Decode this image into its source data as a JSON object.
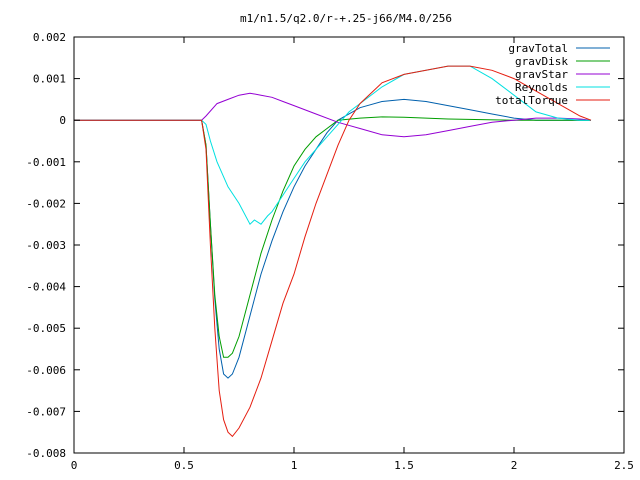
{
  "chart_data": {
    "type": "line",
    "title": "m1/n1.5/q2.0/r-+.25-j66/M4.0/256",
    "xlim": [
      0,
      2.5
    ],
    "ylim": [
      -0.008,
      0.002
    ],
    "x_ticks": [
      {
        "v": 0,
        "label": "0"
      },
      {
        "v": 0.5,
        "label": "0.5"
      },
      {
        "v": 1,
        "label": "1"
      },
      {
        "v": 1.5,
        "label": "1.5"
      },
      {
        "v": 2,
        "label": "2"
      },
      {
        "v": 2.5,
        "label": "2.5"
      }
    ],
    "y_ticks": [
      {
        "v": 0.002,
        "label": "0.002"
      },
      {
        "v": 0.001,
        "label": "0.001"
      },
      {
        "v": 0,
        "label": "0"
      },
      {
        "v": -0.001,
        "label": "-0.001"
      },
      {
        "v": -0.002,
        "label": "-0.002"
      },
      {
        "v": -0.003,
        "label": "-0.003"
      },
      {
        "v": -0.004,
        "label": "-0.004"
      },
      {
        "v": -0.005,
        "label": "-0.005"
      },
      {
        "v": -0.006,
        "label": "-0.006"
      },
      {
        "v": -0.007,
        "label": "-0.007"
      },
      {
        "v": -0.008,
        "label": "-0.008"
      }
    ],
    "grid": false,
    "legend_position": "top-right",
    "series": [
      {
        "name": "gravTotal",
        "color": "#0060ad",
        "points": [
          [
            0,
            0
          ],
          [
            0.58,
            0
          ],
          [
            0.6,
            -0.0006
          ],
          [
            0.62,
            -0.0025
          ],
          [
            0.64,
            -0.0043
          ],
          [
            0.66,
            -0.0055
          ],
          [
            0.68,
            -0.0061
          ],
          [
            0.7,
            -0.0062
          ],
          [
            0.72,
            -0.0061
          ],
          [
            0.75,
            -0.0057
          ],
          [
            0.8,
            -0.0047
          ],
          [
            0.85,
            -0.0037
          ],
          [
            0.9,
            -0.0029
          ],
          [
            0.95,
            -0.0022
          ],
          [
            1.0,
            -0.0016
          ],
          [
            1.05,
            -0.0011
          ],
          [
            1.1,
            -0.0007
          ],
          [
            1.15,
            -0.0003
          ],
          [
            1.2,
            0.0
          ],
          [
            1.3,
            0.0003
          ],
          [
            1.4,
            0.00045
          ],
          [
            1.5,
            0.0005
          ],
          [
            1.6,
            0.00045
          ],
          [
            1.7,
            0.00035
          ],
          [
            1.8,
            0.00025
          ],
          [
            1.9,
            0.00015
          ],
          [
            2.0,
            5e-05
          ],
          [
            2.1,
            0.0
          ],
          [
            2.2,
            0.0
          ],
          [
            2.3,
            0.0
          ],
          [
            2.35,
            0.0
          ]
        ]
      },
      {
        "name": "gravDisk",
        "color": "#009e00",
        "points": [
          [
            0,
            0
          ],
          [
            0.58,
            0
          ],
          [
            0.6,
            -0.0006
          ],
          [
            0.62,
            -0.0025
          ],
          [
            0.64,
            -0.0042
          ],
          [
            0.66,
            -0.0052
          ],
          [
            0.68,
            -0.0057
          ],
          [
            0.7,
            -0.0057
          ],
          [
            0.72,
            -0.0056
          ],
          [
            0.75,
            -0.0052
          ],
          [
            0.8,
            -0.0042
          ],
          [
            0.85,
            -0.0032
          ],
          [
            0.9,
            -0.0024
          ],
          [
            0.95,
            -0.0017
          ],
          [
            1.0,
            -0.0011
          ],
          [
            1.05,
            -0.0007
          ],
          [
            1.1,
            -0.0004
          ],
          [
            1.15,
            -0.0002
          ],
          [
            1.2,
            0.0
          ],
          [
            1.3,
            5e-05
          ],
          [
            1.4,
            8e-05
          ],
          [
            1.5,
            7e-05
          ],
          [
            1.7,
            3e-05
          ],
          [
            2.0,
            0.0
          ],
          [
            2.35,
            0.0
          ]
        ]
      },
      {
        "name": "gravStar",
        "color": "#9400d3",
        "points": [
          [
            0,
            0
          ],
          [
            0.58,
            0
          ],
          [
            0.6,
            0.0001
          ],
          [
            0.65,
            0.0004
          ],
          [
            0.7,
            0.0005
          ],
          [
            0.75,
            0.0006
          ],
          [
            0.8,
            0.00065
          ],
          [
            0.85,
            0.0006
          ],
          [
            0.9,
            0.00055
          ],
          [
            0.95,
            0.00045
          ],
          [
            1.0,
            0.00035
          ],
          [
            1.1,
            0.00015
          ],
          [
            1.2,
            -5e-05
          ],
          [
            1.3,
            -0.0002
          ],
          [
            1.4,
            -0.00035
          ],
          [
            1.5,
            -0.0004
          ],
          [
            1.6,
            -0.00035
          ],
          [
            1.7,
            -0.00025
          ],
          [
            1.8,
            -0.00015
          ],
          [
            1.9,
            -5e-05
          ],
          [
            2.0,
            0.0
          ],
          [
            2.1,
            5e-05
          ],
          [
            2.2,
            5e-05
          ],
          [
            2.3,
            3e-05
          ],
          [
            2.35,
            0.0
          ]
        ]
      },
      {
        "name": "Reynolds",
        "color": "#00e0e0",
        "points": [
          [
            0,
            0
          ],
          [
            0.58,
            0
          ],
          [
            0.6,
            -0.0001
          ],
          [
            0.62,
            -0.0005
          ],
          [
            0.65,
            -0.001
          ],
          [
            0.7,
            -0.0016
          ],
          [
            0.75,
            -0.002
          ],
          [
            0.8,
            -0.0025
          ],
          [
            0.82,
            -0.0024
          ],
          [
            0.85,
            -0.0025
          ],
          [
            0.88,
            -0.0023
          ],
          [
            0.9,
            -0.0022
          ],
          [
            0.95,
            -0.0018
          ],
          [
            1.0,
            -0.0014
          ],
          [
            1.05,
            -0.001
          ],
          [
            1.1,
            -0.0007
          ],
          [
            1.15,
            -0.0004
          ],
          [
            1.2,
            -0.0001
          ],
          [
            1.25,
            0.0002
          ],
          [
            1.3,
            0.0004
          ],
          [
            1.4,
            0.0008
          ],
          [
            1.5,
            0.0011
          ],
          [
            1.6,
            0.0012
          ],
          [
            1.7,
            0.0013
          ],
          [
            1.8,
            0.0013
          ],
          [
            1.9,
            0.001
          ],
          [
            2.0,
            0.0006
          ],
          [
            2.1,
            0.0002
          ],
          [
            2.2,
            5e-05
          ],
          [
            2.3,
            0.0
          ],
          [
            2.35,
            0.0
          ]
        ]
      },
      {
        "name": "totalTorque",
        "color": "#e51e10",
        "points": [
          [
            0,
            0
          ],
          [
            0.58,
            0
          ],
          [
            0.6,
            -0.0007
          ],
          [
            0.62,
            -0.003
          ],
          [
            0.64,
            -0.005
          ],
          [
            0.66,
            -0.0065
          ],
          [
            0.68,
            -0.0072
          ],
          [
            0.7,
            -0.0075
          ],
          [
            0.72,
            -0.0076
          ],
          [
            0.75,
            -0.0074
          ],
          [
            0.8,
            -0.0069
          ],
          [
            0.85,
            -0.0062
          ],
          [
            0.9,
            -0.0053
          ],
          [
            0.95,
            -0.0044
          ],
          [
            1.0,
            -0.0037
          ],
          [
            1.05,
            -0.0028
          ],
          [
            1.1,
            -0.002
          ],
          [
            1.15,
            -0.0013
          ],
          [
            1.2,
            -0.0006
          ],
          [
            1.25,
            0.0
          ],
          [
            1.3,
            0.0004
          ],
          [
            1.4,
            0.0009
          ],
          [
            1.5,
            0.0011
          ],
          [
            1.6,
            0.0012
          ],
          [
            1.7,
            0.0013
          ],
          [
            1.8,
            0.0013
          ],
          [
            1.9,
            0.0012
          ],
          [
            2.0,
            0.001
          ],
          [
            2.1,
            0.0007
          ],
          [
            2.2,
            0.0004
          ],
          [
            2.3,
            0.0001
          ],
          [
            2.35,
            0.0
          ]
        ]
      }
    ]
  }
}
